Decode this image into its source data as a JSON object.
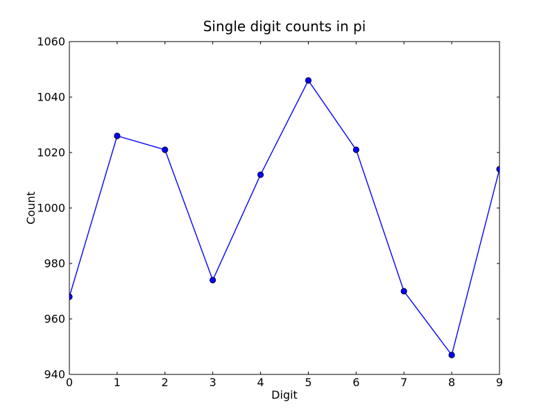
{
  "chart_data": {
    "type": "line",
    "title": "Single digit counts in pi",
    "xlabel": "Digit",
    "ylabel": "Count",
    "x": [
      0,
      1,
      2,
      3,
      4,
      5,
      6,
      7,
      8,
      9
    ],
    "values": [
      968,
      1026,
      1021,
      974,
      1012,
      1046,
      1021,
      970,
      947,
      1014
    ],
    "xlim": [
      0,
      9
    ],
    "ylim": [
      940,
      1060
    ],
    "xticks": [
      0,
      1,
      2,
      3,
      4,
      5,
      6,
      7,
      8,
      9
    ],
    "yticks": [
      940,
      960,
      980,
      1000,
      1020,
      1040,
      1060
    ],
    "grid": false,
    "legend_position": "none",
    "line_color": "#0000ff",
    "marker": "circle",
    "marker_color": "#0000ff",
    "marker_edge_color": "#000000",
    "axes_color": "#000000",
    "background_color": "#ffffff"
  }
}
